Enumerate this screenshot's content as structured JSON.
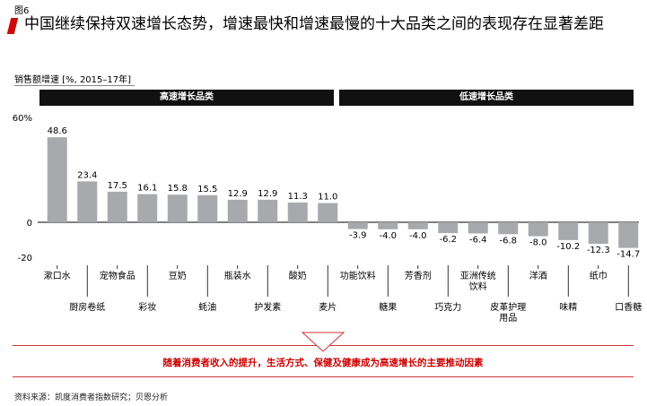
{
  "figure_label": "图6",
  "title": "中国继续保持双速增长态势，增速最快和增速最慢的十大品类之间的表现存在显著差距",
  "ylabel": "销售额增速 [%, 2015–17年]",
  "group_headers": {
    "high": "高速增长品类",
    "low": "低速增长品类"
  },
  "callout": "随着消费者收入的提升，生活方式、保健及健康成为高速增长的主要推动因素",
  "source": "资料来源：凯度消费者指数研究；贝恩分析",
  "colors": {
    "bar": "#a8a9ad",
    "accent": "#cc0a0a",
    "header": "#111111"
  },
  "chart_data": {
    "type": "bar",
    "categories": [
      "漱口水",
      "厨房卷纸",
      "宠物食品",
      "彩妆",
      "豆奶",
      "蚝油",
      "瓶装水",
      "护发素",
      "酸奶",
      "麦片",
      "功能饮料",
      "糖果",
      "芳香剂",
      "巧克力",
      "亚洲传统饮料",
      "皮革护理用品",
      "洋酒",
      "味精",
      "纸巾",
      "口香糖"
    ],
    "values": [
      48.6,
      23.4,
      17.5,
      16.1,
      15.8,
      15.5,
      12.9,
      12.9,
      11.3,
      11.0,
      -3.9,
      -4.0,
      -4.0,
      -6.2,
      -6.4,
      -6.8,
      -8.0,
      -10.2,
      -12.3,
      -14.7
    ],
    "value_labels": [
      "48.6",
      "23.4",
      "17.5",
      "16.1",
      "15.8",
      "15.5",
      "12.9",
      "12.9",
      "11.3",
      "11.0",
      "-3.9",
      "-4.0",
      "-4.0",
      "-6.2",
      "-6.4",
      "-6.8",
      "-8.0",
      "-10.2",
      "-12.3",
      "-14.7"
    ],
    "yticks": [
      "60%",
      "0",
      "-20"
    ],
    "ylim": [
      -20,
      60
    ],
    "grid": false
  }
}
